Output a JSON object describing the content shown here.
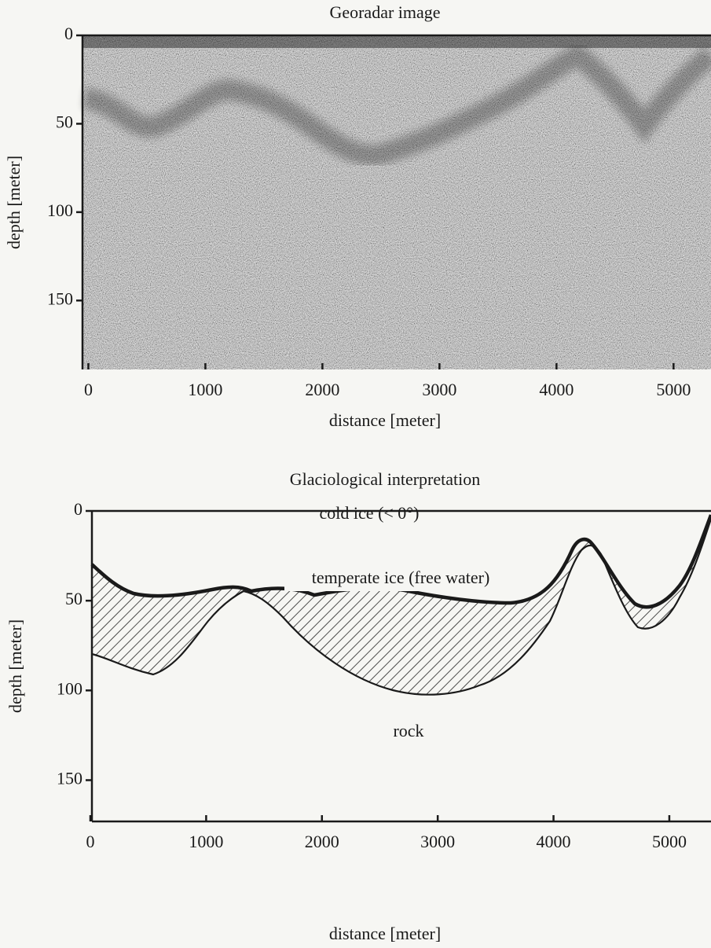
{
  "chart_data": [
    {
      "type": "image",
      "title": "Georadar image",
      "xlabel": "distance [meter]",
      "ylabel": "depth [meter]",
      "xlim": [
        -50,
        5320
      ],
      "ylim": [
        0,
        189
      ],
      "y_inverted": true,
      "xticks": [
        0,
        1000,
        2000,
        3000,
        4000,
        5000
      ],
      "yticks": [
        0,
        50,
        100,
        150
      ]
    },
    {
      "type": "area",
      "title": "Glaciological interpretation",
      "xlabel": "distance [meter]",
      "ylabel": "depth [meter]",
      "xlim": [
        0,
        5360
      ],
      "ylim": [
        0,
        173
      ],
      "y_inverted": true,
      "xticks": [
        0,
        1000,
        2000,
        3000,
        4000,
        5000
      ],
      "yticks": [
        0,
        50,
        100,
        150
      ],
      "annotations": [
        "cold ice (< 0°)",
        "temperate ice (free water)",
        "rock"
      ]
    }
  ]
}
